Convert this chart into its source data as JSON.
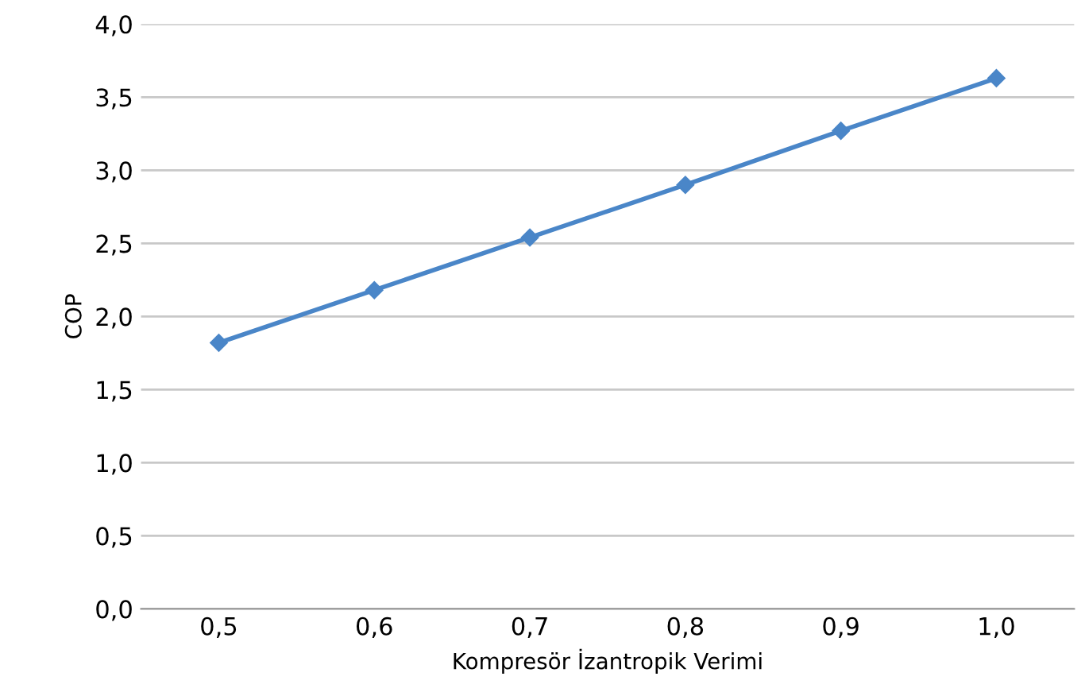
{
  "chart_data": {
    "type": "line",
    "xlabel": "Kompresör İzantropik Verimi",
    "ylabel": "COP",
    "categories": [
      "0,5",
      "0,6",
      "0,7",
      "0,8",
      "0,9",
      "1,0"
    ],
    "series": [
      {
        "color": "#4a86c8",
        "values": [
          1.82,
          2.18,
          2.54,
          2.9,
          3.27,
          3.63
        ]
      }
    ],
    "ylim": [
      0,
      4
    ],
    "yticks": [
      {
        "value": 0,
        "label": "0,0"
      },
      {
        "value": 0.5,
        "label": "0,5"
      },
      {
        "value": 1,
        "label": "1,0"
      },
      {
        "value": 1.5,
        "label": "1,5"
      },
      {
        "value": 2,
        "label": "2,0"
      },
      {
        "value": 2.5,
        "label": "2,5"
      },
      {
        "value": 3,
        "label": "3,0"
      },
      {
        "value": 3.5,
        "label": "3,5"
      },
      {
        "value": 4,
        "label": "4,0"
      }
    ],
    "grid": "y",
    "marker": "diamond",
    "line_style": "solid"
  }
}
